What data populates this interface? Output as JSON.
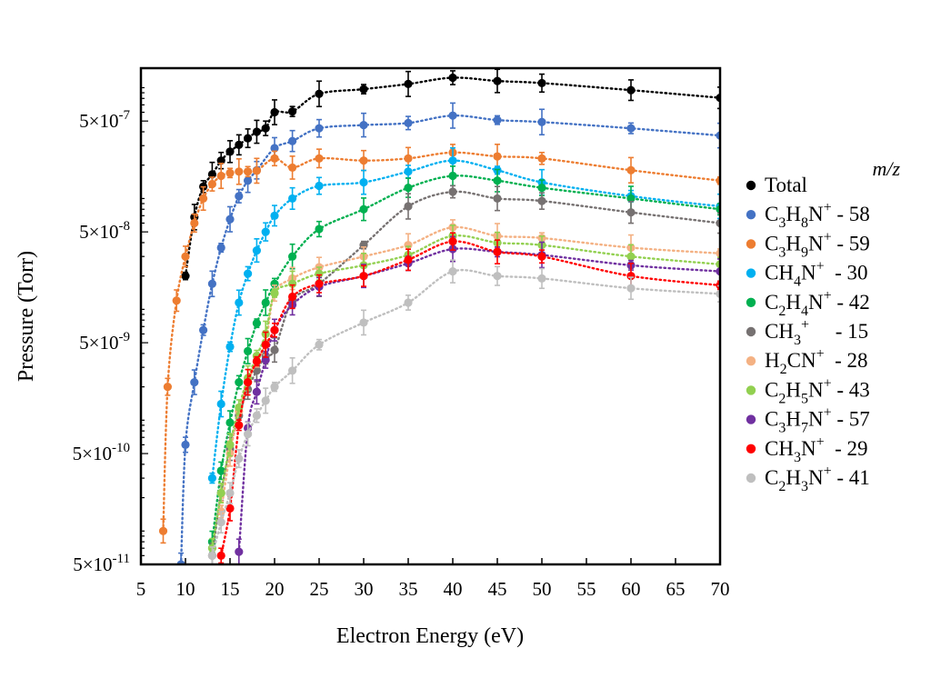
{
  "chart_data": {
    "type": "scatter",
    "xlabel": "Electron Energy (eV)",
    "ylabel": "Pressure (Torr)",
    "xlim": [
      5,
      70
    ],
    "ylim": [
      5e-11,
      1.5e-06
    ],
    "yscale": "log",
    "x_ticks": [
      "5",
      "10",
      "15",
      "20",
      "25",
      "30",
      "35",
      "40",
      "45",
      "50",
      "55",
      "60",
      "65",
      "70"
    ],
    "y_ticks": [
      {
        "value": 5e-11,
        "mantissa": "5×10",
        "exp": "-11"
      },
      {
        "value": 5e-10,
        "mantissa": "5×10",
        "exp": "-10"
      },
      {
        "value": 5e-09,
        "mantissa": "5×10",
        "exp": "-9"
      },
      {
        "value": 5e-08,
        "mantissa": "5×10",
        "exp": "-8"
      },
      {
        "value": 5e-07,
        "mantissa": "5×10",
        "exp": "-7"
      }
    ],
    "legend_title": "m/z",
    "legend_position": "right",
    "fit_lines": "dotted",
    "series": [
      {
        "label": [
          {
            "t": "Total"
          }
        ],
        "color": "#000000",
        "x": [
          10,
          11,
          12,
          13,
          14,
          15,
          16,
          17,
          18,
          19,
          20,
          22,
          25,
          30,
          35,
          40,
          45,
          50,
          60,
          70
        ],
        "y": [
          2e-08,
          6.8e-08,
          1.28e-07,
          1.65e-07,
          2.2e-07,
          2.65e-07,
          3.05e-07,
          3.5e-07,
          4e-07,
          4.3e-07,
          6e-07,
          6.1e-07,
          8.8e-07,
          9.7e-07,
          1.08e-06,
          1.23e-06,
          1.15e-06,
          1.1e-06,
          9.5e-07,
          8.1e-07
        ]
      },
      {
        "label": [
          {
            "t": "C"
          },
          {
            "t": "3",
            "s": "sub"
          },
          {
            "t": "H"
          },
          {
            "t": "8",
            "s": "sub"
          },
          {
            "t": "N"
          },
          {
            "t": "+",
            "s": "sup"
          },
          {
            "t": " - 58"
          }
        ],
        "color": "#4472C4",
        "x": [
          9.5,
          10,
          11,
          12,
          13,
          14,
          15,
          16,
          17,
          18,
          20,
          22,
          25,
          30,
          35,
          40,
          45,
          50,
          60,
          70
        ],
        "y": [
          5e-11,
          6e-10,
          2.2e-09,
          6.5e-09,
          1.7e-08,
          3.6e-08,
          6.5e-08,
          1.05e-07,
          1.45e-07,
          1.8e-07,
          2.85e-07,
          3.3e-07,
          4.3e-07,
          4.6e-07,
          4.8e-07,
          5.6e-07,
          5.1e-07,
          4.9e-07,
          4.3e-07,
          3.7e-07
        ]
      },
      {
        "label": [
          {
            "t": "C"
          },
          {
            "t": "3",
            "s": "sub"
          },
          {
            "t": "H"
          },
          {
            "t": "9",
            "s": "sub"
          },
          {
            "t": "N"
          },
          {
            "t": "+",
            "s": "sup"
          },
          {
            "t": " - 59"
          }
        ],
        "color": "#ED7D31",
        "x": [
          7.5,
          8,
          9,
          10,
          11,
          12,
          13,
          14,
          15,
          16,
          17,
          18,
          20,
          22,
          25,
          30,
          35,
          40,
          45,
          50,
          60,
          70
        ],
        "y": [
          1e-10,
          2e-09,
          1.2e-08,
          3e-08,
          6e-08,
          1e-07,
          1.35e-07,
          1.6e-07,
          1.7e-07,
          1.75e-07,
          1.75e-07,
          1.78e-07,
          2.3e-07,
          1.9e-07,
          2.3e-07,
          2.2e-07,
          2.3e-07,
          2.6e-07,
          2.4e-07,
          2.3e-07,
          1.8e-07,
          1.45e-07
        ]
      },
      {
        "label": [
          {
            "t": "CH"
          },
          {
            "t": "4",
            "s": "sub"
          },
          {
            "t": "N"
          },
          {
            "t": "+",
            "s": "sup"
          },
          {
            "t": "  - 30"
          }
        ],
        "color": "#00B0F0",
        "x": [
          13,
          14,
          15,
          16,
          17,
          18,
          19,
          20,
          22,
          25,
          30,
          35,
          40,
          45,
          50,
          60,
          70
        ],
        "y": [
          3e-10,
          1.4e-09,
          4.6e-09,
          1.15e-08,
          2.1e-08,
          3.4e-08,
          5e-08,
          7e-08,
          1e-07,
          1.3e-07,
          1.4e-07,
          1.75e-07,
          2.2e-07,
          1.8e-07,
          1.4e-07,
          1.05e-07,
          8.5e-08
        ]
      },
      {
        "label": [
          {
            "t": "C"
          },
          {
            "t": "2",
            "s": "sub"
          },
          {
            "t": "H"
          },
          {
            "t": "4",
            "s": "sub"
          },
          {
            "t": "N"
          },
          {
            "t": "+",
            "s": "sup"
          },
          {
            "t": " - 42"
          }
        ],
        "color": "#00B050",
        "x": [
          13,
          14,
          15,
          16,
          17,
          18,
          19,
          20,
          22,
          25,
          30,
          35,
          40,
          45,
          50,
          60,
          70
        ],
        "y": [
          8e-11,
          3.5e-10,
          9.5e-10,
          2.2e-09,
          4.2e-09,
          7.5e-09,
          1.15e-08,
          1.7e-08,
          3e-08,
          5.3e-08,
          8e-08,
          1.25e-07,
          1.6e-07,
          1.45e-07,
          1.25e-07,
          1e-07,
          8e-08
        ]
      },
      {
        "label": [
          {
            "t": "CH"
          },
          {
            "t": "3",
            "s": "sub"
          },
          {
            "t": "+",
            "s": "sup"
          },
          {
            "t": "     - 15"
          }
        ],
        "color": "#767171",
        "x": [
          13,
          14,
          15,
          16,
          17,
          18,
          19,
          20,
          22,
          25,
          30,
          35,
          40,
          45,
          50,
          60,
          70
        ],
        "y": [
          6e-11,
          2.2e-10,
          5.5e-10,
          1.1e-09,
          1.9e-09,
          2.8e-09,
          3.8e-09,
          4.3e-09,
          1.2e-08,
          1.7e-08,
          3.8e-08,
          8.5e-08,
          1.15e-07,
          1e-07,
          9.5e-08,
          7.5e-08,
          6e-08
        ]
      },
      {
        "label": [
          {
            "t": "H"
          },
          {
            "t": "2",
            "s": "sub"
          },
          {
            "t": "CN"
          },
          {
            "t": "+",
            "s": "sup"
          },
          {
            "t": "  - 28"
          }
        ],
        "color": "#F4B183",
        "x": [
          14,
          15,
          16,
          17,
          18,
          19,
          20,
          22,
          25,
          30,
          35,
          40,
          45,
          50,
          60,
          70
        ],
        "y": [
          1.5e-10,
          5e-10,
          1.2e-09,
          2.2e-09,
          3.4e-09,
          5e-09,
          1.4e-08,
          1.9e-08,
          2.4e-08,
          3e-08,
          3.8e-08,
          5.5e-08,
          4.6e-08,
          4.4e-08,
          3.6e-08,
          3.2e-08
        ]
      },
      {
        "label": [
          {
            "t": "C"
          },
          {
            "t": "2",
            "s": "sub"
          },
          {
            "t": "H"
          },
          {
            "t": "5",
            "s": "sub"
          },
          {
            "t": "N"
          },
          {
            "t": "+",
            "s": "sup"
          },
          {
            "t": " - 43"
          }
        ],
        "color": "#92D050",
        "x": [
          13,
          14,
          15,
          16,
          17,
          18,
          19,
          20,
          22,
          25,
          30,
          35,
          40,
          45,
          50,
          60,
          70
        ],
        "y": [
          7e-11,
          2.2e-10,
          6e-10,
          1.3e-09,
          2.4e-09,
          3.8e-09,
          6e-09,
          1.4e-08,
          1.7e-08,
          2.1e-08,
          2.5e-08,
          3.1e-08,
          4.6e-08,
          4e-08,
          3.8e-08,
          3e-08,
          2.55e-08
        ]
      },
      {
        "label": [
          {
            "t": "C"
          },
          {
            "t": "3",
            "s": "sub"
          },
          {
            "t": "H"
          },
          {
            "t": "7",
            "s": "sub"
          },
          {
            "t": "N"
          },
          {
            "t": "+",
            "s": "sup"
          },
          {
            "t": " - 57"
          }
        ],
        "color": "#7030A0",
        "x": [
          16,
          17,
          18,
          19,
          20,
          22,
          25,
          30,
          35,
          40,
          45,
          50,
          60,
          70
        ],
        "y": [
          6.5e-11,
          8.5e-10,
          1.8e-09,
          3.5e-09,
          6.5e-09,
          1.1e-08,
          1.6e-08,
          2e-08,
          2.6e-08,
          3.5e-08,
          3.3e-08,
          3.1e-08,
          2.5e-08,
          2.2e-08
        ]
      },
      {
        "label": [
          {
            "t": "CH"
          },
          {
            "t": "3",
            "s": "sub"
          },
          {
            "t": "N"
          },
          {
            "t": "+",
            "s": "sup"
          },
          {
            "t": "  - 29"
          }
        ],
        "color": "#FF0000",
        "x": [
          14,
          15,
          16,
          17,
          18,
          19,
          20,
          22,
          25,
          30,
          35,
          40,
          45,
          50,
          60,
          70
        ],
        "y": [
          6e-11,
          1.6e-10,
          9e-10,
          2.2e-09,
          3.4e-09,
          4.8e-09,
          6.5e-09,
          1.3e-08,
          1.7e-08,
          2e-08,
          2.8e-08,
          4.1e-08,
          3.3e-08,
          3e-08,
          2e-08,
          1.65e-08
        ]
      },
      {
        "label": [
          {
            "t": "C"
          },
          {
            "t": "2",
            "s": "sub"
          },
          {
            "t": "H"
          },
          {
            "t": "3",
            "s": "sub"
          },
          {
            "t": "N"
          },
          {
            "t": "+",
            "s": "sup"
          },
          {
            "t": " - 41"
          }
        ],
        "color": "#BFBFBF",
        "x": [
          13,
          14,
          15,
          16,
          17,
          18,
          19,
          20,
          22,
          25,
          30,
          35,
          40,
          45,
          50,
          60,
          70
        ],
        "y": [
          6e-11,
          1.2e-10,
          2.2e-10,
          4.5e-10,
          7.5e-10,
          1.1e-09,
          1.5e-09,
          2e-09,
          2.8e-09,
          4.8e-09,
          7.6e-09,
          1.15e-08,
          2.2e-08,
          2e-08,
          1.9e-08,
          1.55e-08,
          1.38e-08
        ]
      }
    ]
  }
}
